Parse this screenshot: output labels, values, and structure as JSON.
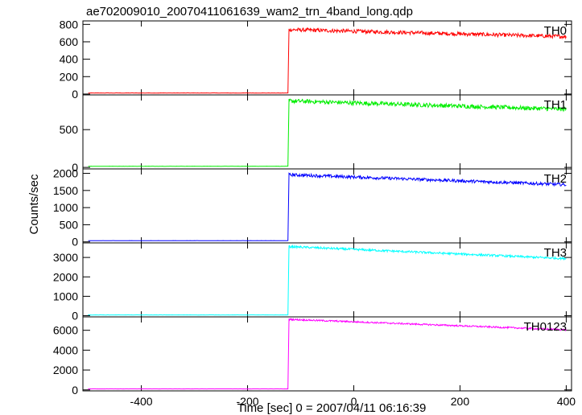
{
  "title": "ae702009010_20070411061639_wam2_trn_4band_long.qdp",
  "xlabel": "Time [sec] 0 = 2007/04/11 06:16:39",
  "ylabel": "Counts/sec",
  "chart_data": {
    "type": "line",
    "title": "ae702009010_20070411061639_wam2_trn_4band_long.qdp",
    "xlabel": "Time [sec] 0 = 2007/04/11 06:16:39",
    "ylabel": "Counts/sec",
    "xlim": [
      -510,
      410
    ],
    "x_ticks": [
      -400,
      -200,
      0,
      200,
      400
    ],
    "step_time": -122,
    "grid": false,
    "panels": [
      {
        "name": "TH0",
        "color": "#ff0000",
        "ylim": [
          -10,
          840
        ],
        "y_ticks": [
          0,
          200,
          400,
          600,
          800
        ],
        "pre": 12,
        "post_start": 740,
        "post_end": 660,
        "noise": 22
      },
      {
        "name": "TH1",
        "color": "#00ee00",
        "ylim": [
          -20,
          960
        ],
        "y_ticks": [
          0,
          500
        ],
        "pre": 15,
        "post_start": 880,
        "post_end": 770,
        "noise": 28
      },
      {
        "name": "TH2",
        "color": "#0000ff",
        "ylim": [
          -30,
          2130
        ],
        "y_ticks": [
          0,
          500,
          1000,
          1500,
          2000
        ],
        "pre": 35,
        "post_start": 1960,
        "post_end": 1670,
        "noise": 45
      },
      {
        "name": "TH3",
        "color": "#00ffff",
        "ylim": [
          -60,
          3750
        ],
        "y_ticks": [
          0,
          1000,
          2000,
          3000
        ],
        "pre": 40,
        "post_start": 3560,
        "post_end": 2940,
        "noise": 55
      },
      {
        "name": "TH0123",
        "color": "#ff00ff",
        "ylim": [
          -100,
          7350
        ],
        "y_ticks": [
          0,
          2000,
          4000,
          6000
        ],
        "pre": 100,
        "post_start": 7100,
        "post_end": 6050,
        "noise": 80
      }
    ]
  }
}
